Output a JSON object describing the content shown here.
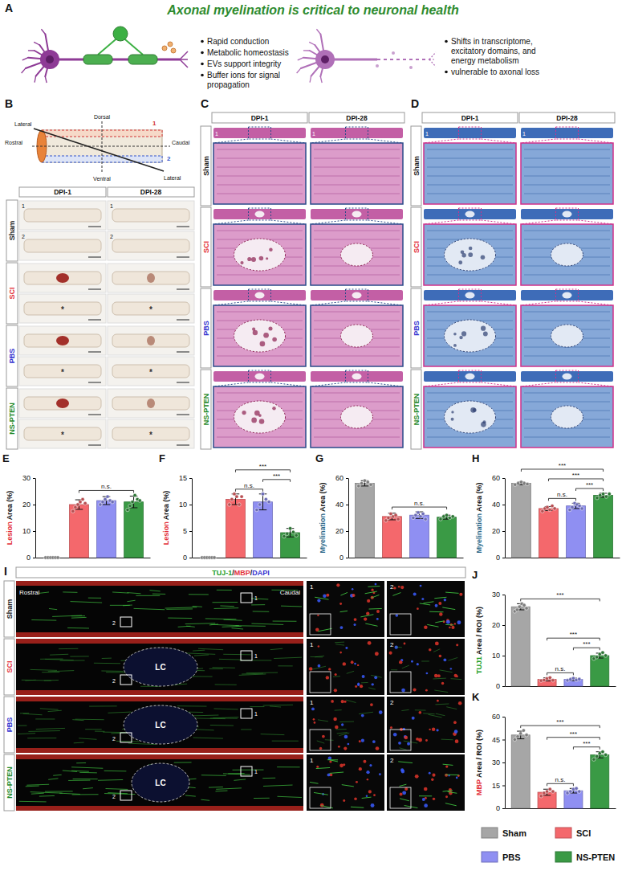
{
  "chart_data": [
    {
      "type": "bar",
      "panel": "E",
      "y_label": "Lesion Area (%)",
      "categories": [
        "Sham",
        "SCI",
        "PBS",
        "NS-PTEN"
      ],
      "colors": [
        "#a6a6a6",
        "#f4686c",
        "#8f8ff2",
        "#3a9a45"
      ],
      "values": [
        0,
        20,
        21.5,
        21
      ],
      "errors": [
        0,
        1.8,
        1.5,
        2.2
      ],
      "points": [
        [
          0,
          0,
          0,
          0,
          0,
          0
        ],
        [
          17.5,
          19,
          20,
          21,
          22,
          20.5
        ],
        [
          20,
          21,
          22,
          23,
          21.5,
          21
        ],
        [
          18,
          19.5,
          21,
          23.5,
          22,
          21.5
        ]
      ],
      "ylim": [
        0,
        30
      ],
      "yticks": [
        0,
        10,
        20,
        30
      ],
      "tick_labels": "y",
      "comparisons": [
        {
          "pair": [
            1,
            3
          ],
          "label": "n.s."
        }
      ]
    },
    {
      "type": "bar",
      "panel": "F",
      "y_label": "Lesion Area (%)",
      "categories": [
        "Sham",
        "SCI",
        "PBS",
        "NS-PTEN"
      ],
      "colors": [
        "#a6a6a6",
        "#f4686c",
        "#8f8ff2",
        "#3a9a45"
      ],
      "values": [
        0,
        11,
        10.5,
        4.7
      ],
      "errors": [
        0,
        1,
        1.5,
        0.8
      ],
      "points": [
        [
          0,
          0,
          0,
          0,
          0,
          0
        ],
        [
          10,
          11,
          12,
          11.5,
          10,
          11.5
        ],
        [
          9,
          10,
          12,
          11,
          10.5
        ],
        [
          4,
          4.5,
          5.5,
          4.8,
          4.2
        ]
      ],
      "ylim": [
        0,
        15
      ],
      "yticks": [
        0,
        5,
        10,
        15
      ],
      "tick_labels": "y",
      "comparisons": [
        {
          "pair": [
            1,
            2
          ],
          "label": "n.s."
        },
        {
          "pair": [
            2,
            3
          ],
          "label": "***"
        },
        {
          "pair": [
            1,
            3
          ],
          "label": "***"
        }
      ]
    },
    {
      "type": "bar",
      "panel": "G",
      "y_label": "Myelination Area (%)",
      "categories": [
        "Sham",
        "SCI",
        "PBS",
        "NS-PTEN"
      ],
      "colors": [
        "#a6a6a6",
        "#f4686c",
        "#8f8ff2",
        "#3a9a45"
      ],
      "values": [
        56,
        31,
        32,
        30.5
      ],
      "errors": [
        2,
        2.5,
        2.5,
        1.5
      ],
      "points": [
        [
          54,
          56,
          58,
          57,
          55
        ],
        [
          28,
          30,
          33,
          31,
          32,
          29
        ],
        [
          30,
          32,
          34,
          31,
          33,
          29
        ],
        [
          29,
          31,
          32,
          30,
          31
        ]
      ],
      "ylim": [
        0,
        60
      ],
      "yticks": [
        0,
        20,
        40,
        60
      ],
      "tick_labels": "y",
      "comparisons": [
        {
          "pair": [
            1,
            3
          ],
          "label": "n.s."
        }
      ]
    },
    {
      "type": "bar",
      "panel": "H",
      "y_label": "Myelination Area (%)",
      "categories": [
        "Sham",
        "SCI",
        "PBS",
        "NS-PTEN"
      ],
      "colors": [
        "#a6a6a6",
        "#f4686c",
        "#8f8ff2",
        "#3a9a45"
      ],
      "values": [
        56,
        37,
        39,
        47
      ],
      "errors": [
        1,
        1.5,
        2,
        1.5
      ],
      "points": [
        [
          55,
          56,
          57,
          56,
          55.5
        ],
        [
          35,
          37,
          38,
          36,
          39,
          37
        ],
        [
          36,
          38,
          41,
          40,
          39,
          37
        ],
        [
          45,
          47,
          48,
          46,
          48
        ]
      ],
      "ylim": [
        0,
        60
      ],
      "yticks": [
        0,
        20,
        40,
        60
      ],
      "tick_labels": "y",
      "comparisons": [
        {
          "pair": [
            1,
            2
          ],
          "label": "n.s."
        },
        {
          "pair": [
            2,
            3
          ],
          "label": "***"
        },
        {
          "pair": [
            1,
            3
          ],
          "label": "***"
        },
        {
          "pair": [
            0,
            3
          ],
          "label": "***"
        }
      ]
    },
    {
      "type": "bar",
      "panel": "J",
      "y_label": "TUJ1 Area / ROI (%)",
      "categories": [
        "Sham",
        "SCI",
        "PBS",
        "NS-PTEN"
      ],
      "colors": [
        "#a6a6a6",
        "#f4686c",
        "#8f8ff2",
        "#3a9a45"
      ],
      "values": [
        26,
        2.2,
        2.2,
        10
      ],
      "errors": [
        1,
        0.5,
        0.4,
        0.8
      ],
      "points": [
        [
          24.5,
          25,
          26,
          27,
          26.5,
          25.5
        ],
        [
          1.8,
          2,
          2.5,
          2.8,
          1.9
        ],
        [
          1.9,
          2.2,
          2.6,
          2,
          2.3
        ],
        [
          9,
          9.5,
          10.5,
          11,
          10
        ]
      ],
      "ylim": [
        0,
        30
      ],
      "yticks": [
        0,
        10,
        20,
        30
      ],
      "tick_labels": "y",
      "comparisons": [
        {
          "pair": [
            1,
            2
          ],
          "label": "n.s."
        },
        {
          "pair": [
            2,
            3
          ],
          "label": "***"
        },
        {
          "pair": [
            1,
            3
          ],
          "label": "***"
        },
        {
          "pair": [
            0,
            3
          ],
          "label": "***"
        }
      ]
    },
    {
      "type": "bar",
      "panel": "K",
      "y_label": "MBP Area / ROI (%)",
      "categories": [
        "Sham",
        "SCI",
        "PBS",
        "NS-PTEN"
      ],
      "colors": [
        "#a6a6a6",
        "#f4686c",
        "#8f8ff2",
        "#3a9a45"
      ],
      "values": [
        48,
        10.5,
        11.5,
        35
      ],
      "errors": [
        2.5,
        2,
        1.5,
        2
      ],
      "points": [
        [
          45,
          47,
          49,
          51,
          48
        ],
        [
          8,
          10,
          11,
          12.5,
          11
        ],
        [
          10,
          11,
          12.5,
          13,
          11
        ],
        [
          32,
          34,
          36,
          37,
          35
        ]
      ],
      "ylim": [
        0,
        60
      ],
      "yticks": [
        0,
        15,
        30,
        45,
        60
      ],
      "tick_labels": "y",
      "comparisons": [
        {
          "pair": [
            1,
            2
          ],
          "label": "n.s."
        },
        {
          "pair": [
            2,
            3
          ],
          "label": "***"
        },
        {
          "pair": [
            1,
            3
          ],
          "label": "***"
        },
        {
          "pair": [
            0,
            3
          ],
          "label": "***"
        }
      ]
    }
  ],
  "figure": {
    "A": {
      "label": "A",
      "title": "Axonal myelination is critical to neuronal health",
      "myelinated_points": [
        "Rapid conduction",
        "Metabolic homeostasis",
        "EVs support integrity",
        "Buffer ions for signal propagation"
      ],
      "demyelinated_points": [
        "Shifts in transcriptome, excitatory domains, and energy metabolism",
        "vulnerable to axonal loss"
      ]
    },
    "B": {
      "label": "B",
      "axes": {
        "dorsal": "Dorsal",
        "ventral": "Ventral",
        "lateral": "Lateral",
        "rostral": "Rostral",
        "caudal": "Caudal"
      },
      "sections": [
        "1",
        "2"
      ],
      "columns": [
        "DPI-1",
        "DPI-28"
      ],
      "rows": [
        {
          "name": "Sham",
          "marker": null
        },
        {
          "name": "SCI",
          "marker": "*"
        },
        {
          "name": "PBS",
          "marker": "*"
        },
        {
          "name": "NS-PTEN",
          "marker": "*"
        }
      ]
    },
    "C": {
      "label": "C",
      "section": "1",
      "columns": [
        "DPI-1",
        "DPI-28"
      ],
      "rows": [
        "Sham",
        "SCI",
        "PBS",
        "NS-PTEN"
      ]
    },
    "D": {
      "label": "D",
      "section": "1",
      "columns": [
        "DPI-1",
        "DPI-28"
      ],
      "rows": [
        "Sham",
        "SCI",
        "PBS",
        "NS-PTEN"
      ]
    },
    "I": {
      "label": "I",
      "stain": "TUJ-1/MBP/DAPI",
      "rostral": "Rostral",
      "caudal": "Caudal",
      "insets": [
        "1",
        "2"
      ],
      "rows": [
        {
          "name": "Sham",
          "lesion": null
        },
        {
          "name": "SCI",
          "lesion": "LC"
        },
        {
          "name": "PBS",
          "lesion": "LC"
        },
        {
          "name": "NS-PTEN",
          "lesion": "LC"
        }
      ]
    }
  }
}
